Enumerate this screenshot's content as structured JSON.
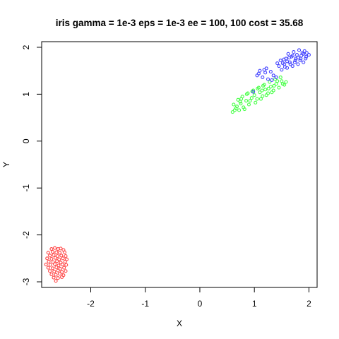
{
  "chart_data": {
    "type": "scatter",
    "title": "iris gamma = 1e-3 eps = 1e-3 ee = 100, 100 cost = 35.68",
    "xlabel": "X",
    "ylabel": "Y",
    "xlim": [
      -2.9,
      2.15
    ],
    "ylim": [
      -3.12,
      2.12
    ],
    "x_ticks": [
      -2,
      -1,
      0,
      1,
      2
    ],
    "y_ticks": [
      -3,
      -2,
      -1,
      0,
      1,
      2
    ],
    "x_tick_labels": [
      "-2",
      "-1",
      "0",
      "1",
      "2"
    ],
    "y_tick_labels": [
      "-3",
      "-2",
      "-1",
      "0",
      "1",
      "2"
    ],
    "grid": false,
    "marker": "open-circle",
    "series": [
      {
        "color": "#ff4444",
        "points": [
          [
            -2.72,
            -2.3
          ],
          [
            -2.66,
            -2.28
          ],
          [
            -2.6,
            -2.3
          ],
          [
            -2.55,
            -2.29
          ],
          [
            -2.5,
            -2.32
          ],
          [
            -2.78,
            -2.38
          ],
          [
            -2.7,
            -2.36
          ],
          [
            -2.63,
            -2.37
          ],
          [
            -2.57,
            -2.38
          ],
          [
            -2.48,
            -2.37
          ],
          [
            -2.75,
            -2.44
          ],
          [
            -2.68,
            -2.43
          ],
          [
            -2.61,
            -2.45
          ],
          [
            -2.54,
            -2.44
          ],
          [
            -2.46,
            -2.45
          ],
          [
            -2.8,
            -2.5
          ],
          [
            -2.72,
            -2.51
          ],
          [
            -2.65,
            -2.49
          ],
          [
            -2.58,
            -2.52
          ],
          [
            -2.51,
            -2.5
          ],
          [
            -2.44,
            -2.52
          ],
          [
            -2.77,
            -2.57
          ],
          [
            -2.69,
            -2.58
          ],
          [
            -2.62,
            -2.56
          ],
          [
            -2.55,
            -2.59
          ],
          [
            -2.47,
            -2.57
          ],
          [
            -2.82,
            -2.63
          ],
          [
            -2.74,
            -2.64
          ],
          [
            -2.66,
            -2.62
          ],
          [
            -2.59,
            -2.65
          ],
          [
            -2.52,
            -2.63
          ],
          [
            -2.45,
            -2.64
          ],
          [
            -2.78,
            -2.7
          ],
          [
            -2.7,
            -2.71
          ],
          [
            -2.63,
            -2.69
          ],
          [
            -2.56,
            -2.72
          ],
          [
            -2.49,
            -2.7
          ],
          [
            -2.75,
            -2.77
          ],
          [
            -2.67,
            -2.78
          ],
          [
            -2.6,
            -2.76
          ],
          [
            -2.53,
            -2.79
          ],
          [
            -2.46,
            -2.77
          ],
          [
            -2.72,
            -2.84
          ],
          [
            -2.64,
            -2.85
          ],
          [
            -2.57,
            -2.83
          ],
          [
            -2.5,
            -2.86
          ],
          [
            -2.68,
            -2.91
          ],
          [
            -2.6,
            -2.92
          ],
          [
            -2.53,
            -2.9
          ],
          [
            -2.64,
            -2.98
          ]
        ]
      },
      {
        "color": "#44ff44",
        "points": [
          [
            0.6,
            0.62
          ],
          [
            0.66,
            0.7
          ],
          [
            0.62,
            0.78
          ],
          [
            0.72,
            0.66
          ],
          [
            0.75,
            0.8
          ],
          [
            0.8,
            0.72
          ],
          [
            0.7,
            0.88
          ],
          [
            0.85,
            0.86
          ],
          [
            0.9,
            0.78
          ],
          [
            0.78,
            0.95
          ],
          [
            0.95,
            0.92
          ],
          [
            0.88,
            1.02
          ],
          [
            1.0,
            0.98
          ],
          [
            1.05,
            0.9
          ],
          [
            0.98,
            1.08
          ],
          [
            1.1,
            1.04
          ],
          [
            1.15,
            0.96
          ],
          [
            1.08,
            1.14
          ],
          [
            1.2,
            1.1
          ],
          [
            1.25,
            1.02
          ],
          [
            1.18,
            1.2
          ],
          [
            1.3,
            1.16
          ],
          [
            1.35,
            1.08
          ],
          [
            1.28,
            1.26
          ],
          [
            1.4,
            1.22
          ],
          [
            1.45,
            1.14
          ],
          [
            1.38,
            1.32
          ],
          [
            1.5,
            1.28
          ],
          [
            1.55,
            1.2
          ],
          [
            1.48,
            1.36
          ],
          [
            1.58,
            1.26
          ],
          [
            0.82,
            0.68
          ],
          [
            0.92,
            0.86
          ],
          [
            1.02,
            0.82
          ],
          [
            1.12,
            0.9
          ],
          [
            0.68,
            0.74
          ],
          [
            0.76,
            0.9
          ],
          [
            0.86,
            1.0
          ],
          [
            0.96,
            1.06
          ],
          [
            1.06,
            1.12
          ],
          [
            1.16,
            1.18
          ],
          [
            1.26,
            1.12
          ],
          [
            1.36,
            1.18
          ],
          [
            1.22,
            0.98
          ],
          [
            1.32,
            1.04
          ],
          [
            0.64,
            0.66
          ],
          [
            0.74,
            0.84
          ],
          [
            1.42,
            1.28
          ],
          [
            1.52,
            1.22
          ],
          [
            1.14,
            1.08
          ]
        ]
      },
      {
        "color": "#4444ff",
        "points": [
          [
            0.98,
            1.05
          ],
          [
            1.05,
            1.4
          ],
          [
            1.1,
            1.5
          ],
          [
            1.15,
            1.36
          ],
          [
            1.2,
            1.46
          ],
          [
            1.25,
            1.32
          ],
          [
            1.3,
            1.48
          ],
          [
            1.35,
            1.4
          ],
          [
            1.22,
            1.55
          ],
          [
            1.4,
            1.36
          ],
          [
            1.45,
            1.6
          ],
          [
            1.5,
            1.52
          ],
          [
            1.48,
            1.72
          ],
          [
            1.55,
            1.64
          ],
          [
            1.6,
            1.56
          ],
          [
            1.58,
            1.76
          ],
          [
            1.65,
            1.68
          ],
          [
            1.7,
            1.6
          ],
          [
            1.68,
            1.8
          ],
          [
            1.75,
            1.72
          ],
          [
            1.8,
            1.64
          ],
          [
            1.78,
            1.84
          ],
          [
            1.85,
            1.76
          ],
          [
            1.9,
            1.68
          ],
          [
            1.88,
            1.88
          ],
          [
            1.95,
            1.8
          ],
          [
            2.0,
            1.84
          ],
          [
            1.92,
            1.92
          ],
          [
            1.62,
            1.86
          ],
          [
            1.72,
            1.9
          ],
          [
            1.82,
            1.94
          ],
          [
            1.52,
            1.66
          ],
          [
            1.56,
            1.58
          ],
          [
            1.66,
            1.64
          ],
          [
            1.76,
            1.76
          ],
          [
            1.86,
            1.82
          ],
          [
            1.96,
            1.88
          ],
          [
            1.42,
            1.66
          ],
          [
            1.64,
            1.78
          ],
          [
            1.74,
            1.68
          ],
          [
            1.84,
            1.72
          ],
          [
            1.94,
            1.76
          ],
          [
            1.54,
            1.74
          ],
          [
            1.6,
            1.7
          ],
          [
            1.7,
            1.82
          ],
          [
            1.8,
            1.78
          ],
          [
            1.9,
            1.86
          ],
          [
            1.08,
            1.44
          ],
          [
            1.18,
            1.52
          ],
          [
            1.32,
            1.3
          ]
        ]
      }
    ]
  }
}
